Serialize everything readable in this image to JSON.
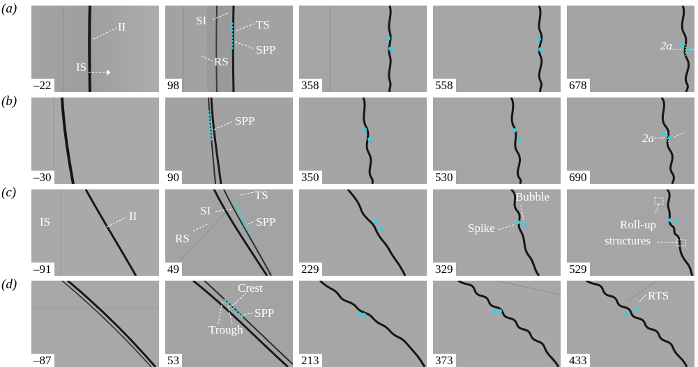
{
  "rows": [
    {
      "label": "(a)",
      "panels": [
        {
          "time": "–22",
          "annotations": [
            "II",
            "IS"
          ]
        },
        {
          "time": "98",
          "annotations": [
            "SI",
            "TS",
            "SPP",
            "RS"
          ]
        },
        {
          "time": "358",
          "annotations": []
        },
        {
          "time": "558",
          "annotations": []
        },
        {
          "time": "678",
          "annotations": [
            "2a"
          ]
        }
      ]
    },
    {
      "label": "(b)",
      "panels": [
        {
          "time": "–30",
          "annotations": []
        },
        {
          "time": "90",
          "annotations": [
            "SPP"
          ]
        },
        {
          "time": "350",
          "annotations": []
        },
        {
          "time": "530",
          "annotations": []
        },
        {
          "time": "690",
          "annotations": [
            "2a"
          ]
        }
      ]
    },
    {
      "label": "(c)",
      "panels": [
        {
          "time": "–91",
          "annotations": [
            "IS",
            "II"
          ]
        },
        {
          "time": "49",
          "annotations": [
            "TS",
            "SI",
            "SPP",
            "RS"
          ]
        },
        {
          "time": "229",
          "annotations": []
        },
        {
          "time": "329",
          "annotations": [
            "Bubble",
            "Spike"
          ]
        },
        {
          "time": "529",
          "annotations": [
            "Roll-up",
            "structures"
          ]
        }
      ]
    },
    {
      "label": "(d)",
      "panels": [
        {
          "time": "–87",
          "annotations": []
        },
        {
          "time": "53",
          "annotations": [
            "Crest",
            "SPP",
            "Trough"
          ]
        },
        {
          "time": "213",
          "annotations": []
        },
        {
          "time": "373",
          "annotations": []
        },
        {
          "time": "433",
          "annotations": [
            "RTS"
          ]
        }
      ]
    }
  ],
  "colors": {
    "marker": "#2fd3de",
    "background": "#a4a4a4",
    "interface": "#1a1a1a",
    "annotation": "#ffffff"
  }
}
